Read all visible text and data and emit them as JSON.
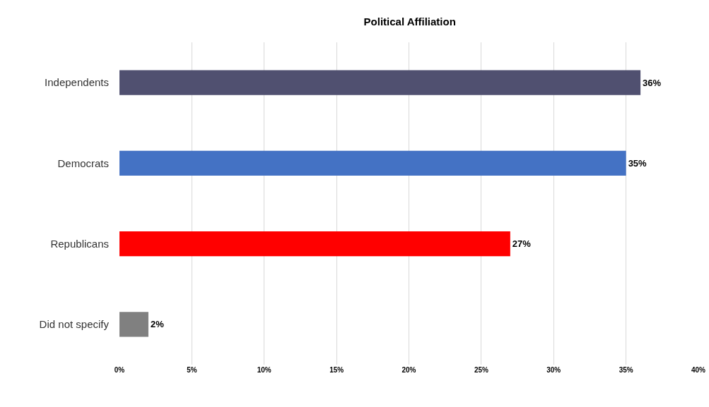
{
  "chart_data": {
    "type": "bar",
    "orientation": "horizontal",
    "title": "Political Affiliation",
    "categories": [
      "Independents",
      "Democrats",
      "Republicans",
      "Did not specify"
    ],
    "values": [
      36,
      35,
      27,
      2
    ],
    "colors": [
      "#505070",
      "#4472c4",
      "#ff0000",
      "#808080"
    ],
    "value_labels": [
      "36%",
      "35%",
      "27%",
      "2%"
    ],
    "xlim": [
      0,
      40
    ],
    "xticks": [
      {
        "value": 0,
        "label": "0%"
      },
      {
        "value": 5,
        "label": "5%"
      },
      {
        "value": 10,
        "label": "10%"
      },
      {
        "value": 15,
        "label": "15%"
      },
      {
        "value": 20,
        "label": "20%"
      },
      {
        "value": 25,
        "label": "25%"
      },
      {
        "value": 30,
        "label": "30%"
      },
      {
        "value": 35,
        "label": "35%"
      },
      {
        "value": 40,
        "label": "40%"
      }
    ],
    "grid": "x",
    "legend": false
  }
}
